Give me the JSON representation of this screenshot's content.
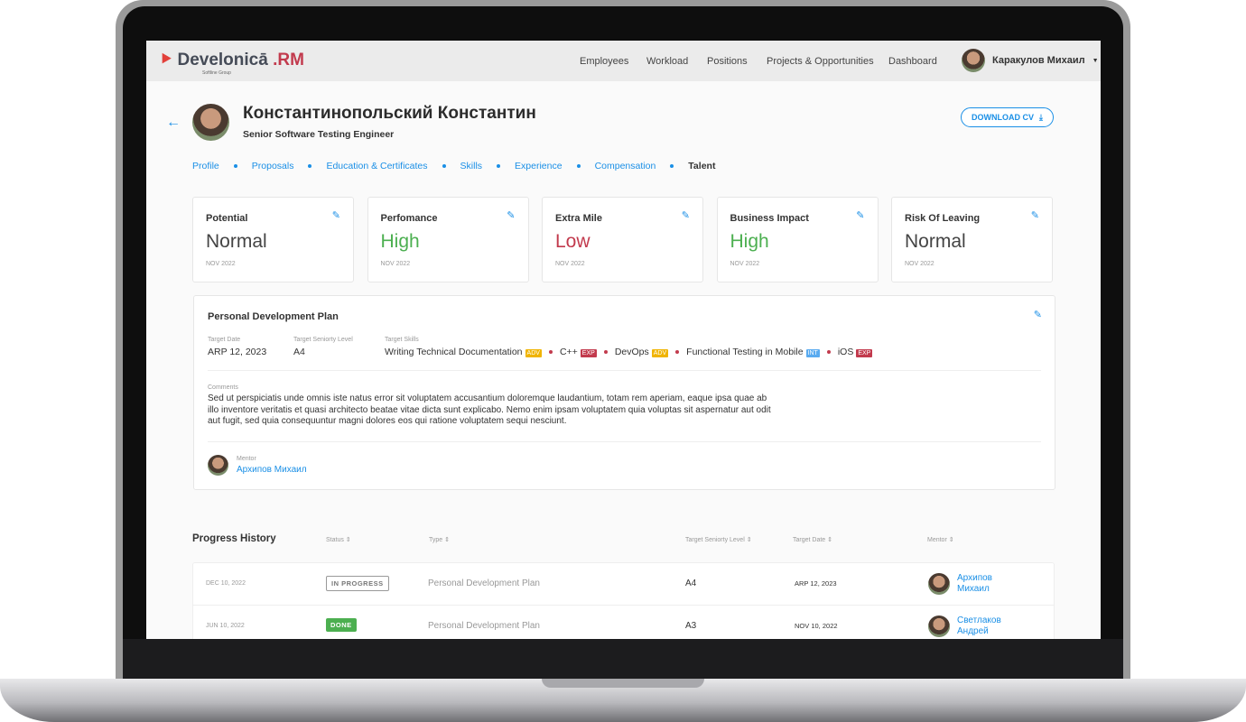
{
  "header": {
    "logo": "Develonicā",
    "logo_suffix": ".RM",
    "logo_sub": "Softline Group",
    "nav": [
      "Employees",
      "Workload",
      "Positions",
      "Projects & Opportunities",
      "Dashboard"
    ],
    "user": "Каракулов Михаил"
  },
  "profile": {
    "name": "Константинопольский Константин",
    "title": "Senior Software Testing Engineer",
    "download": "DOWNLOAD CV"
  },
  "tabs": [
    "Profile",
    "Proposals",
    "Education & Certificates",
    "Skills",
    "Experience",
    "Compensation",
    "Talent"
  ],
  "cards": [
    {
      "label": "Potential",
      "value": "Normal",
      "date": "NOV 2022",
      "color": "#444444"
    },
    {
      "label": "Perfomance",
      "value": "High",
      "date": "NOV 2022",
      "color": "#4caf50"
    },
    {
      "label": "Extra Mile",
      "value": "Low",
      "date": "NOV 2022",
      "color": "#c23a4d"
    },
    {
      "label": "Business Impact",
      "value": "High",
      "date": "NOV 2022",
      "color": "#4caf50"
    },
    {
      "label": "Risk Of Leaving",
      "value": "Normal",
      "date": "NOV 2022",
      "color": "#444444"
    }
  ],
  "pdp": {
    "title": "Personal Development Plan",
    "target_date_label": "Target Date",
    "target_date": "ARP 12, 2023",
    "level_label": "Target Seniorty Level",
    "level": "A4",
    "skills_label": "Target Skills",
    "skills": [
      {
        "name": "Writing Technical Documentation",
        "tag": "ADV",
        "color": "#f0b400"
      },
      {
        "name": "C++",
        "tag": "EXP",
        "color": "#c23a4d"
      },
      {
        "name": "DevOps",
        "tag": "ADV",
        "color": "#f0b400"
      },
      {
        "name": "Functional Testing in Mobile",
        "tag": "INT",
        "color": "#5aabf0"
      },
      {
        "name": "iOS",
        "tag": "EXP",
        "color": "#c23a4d"
      }
    ],
    "comments_label": "Comments",
    "comments": "Sed ut perspiciatis unde omnis iste natus error sit voluptatem accusantium doloremque laudantium, totam rem aperiam, eaque ipsa quae ab illo inventore veritatis et quasi architecto beatae vitae dicta sunt explicabo. Nemo enim ipsam voluptatem quia voluptas sit aspernatur aut odit aut fugit, sed quia consequuntur magni dolores eos qui ratione voluptatem sequi nesciunt.",
    "mentor_label": "Mentor",
    "mentor": "Архипов Михаил"
  },
  "history": {
    "title": "Progress History",
    "columns": [
      "Status",
      "Type",
      "Target Seniorty Level",
      "Target Date",
      "Mentor"
    ],
    "rows": [
      {
        "date": "DEC 10, 2022",
        "status": "IN PROGRESS",
        "type": "Personal Development Plan",
        "level": "A4",
        "target": "ARP 12, 2023",
        "mentor1": "Архипов",
        "mentor2": "Михаил"
      },
      {
        "date": "JUN 10, 2022",
        "status": "DONE",
        "type": "Personal Development Plan",
        "level": "A3",
        "target": "NOV 10, 2022",
        "mentor1": "Светлаков",
        "mentor2": "Андрей"
      }
    ]
  }
}
